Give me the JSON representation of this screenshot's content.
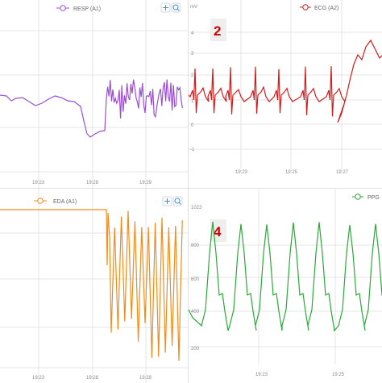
{
  "colors": {
    "resp": "#9b4fcf",
    "ecg": "#cc1f1f",
    "eda": "#f08c1a",
    "ppg": "#2aa838",
    "grid": "#e4e4e4",
    "badge_bg": "#eeeeee",
    "badge_text": "#cc0000",
    "icon": "#4a90c8"
  },
  "chart_data": [
    {
      "type": "line",
      "panel": "top-left",
      "legend": "RESP (A1)",
      "x_ticks": [
        "19:23",
        "19:28",
        "19:29"
      ],
      "y_ticks": [],
      "grid": true,
      "legend_placement": "top-center",
      "toolbar_icons": [
        "pan-icon",
        "zoom-icon"
      ]
    },
    {
      "type": "line",
      "panel": "top-right",
      "legend": "ECG (A2)",
      "badge": "2",
      "y_ticks": [
        "mV",
        "4",
        "3",
        "2",
        "1",
        "0",
        "-1"
      ],
      "x_ticks": [
        "19:23",
        "19:25",
        "19:27"
      ],
      "grid": true,
      "legend_placement": "top-center"
    },
    {
      "type": "line",
      "panel": "bottom-left",
      "legend": "EDA (A1)",
      "x_ticks": [
        "19:23",
        "19:28",
        "19:29"
      ],
      "y_ticks": [],
      "grid": true,
      "legend_placement": "top-center",
      "toolbar_icons": [
        "pan-icon",
        "zoom-icon"
      ]
    },
    {
      "type": "line",
      "panel": "bottom-right",
      "legend": "PPG",
      "badge": "4",
      "y_ticks": [
        "1023",
        "800",
        "600",
        "400",
        "200"
      ],
      "x_ticks": [
        "19:23",
        "19:25"
      ],
      "grid": true,
      "legend_placement": "top-right"
    }
  ]
}
